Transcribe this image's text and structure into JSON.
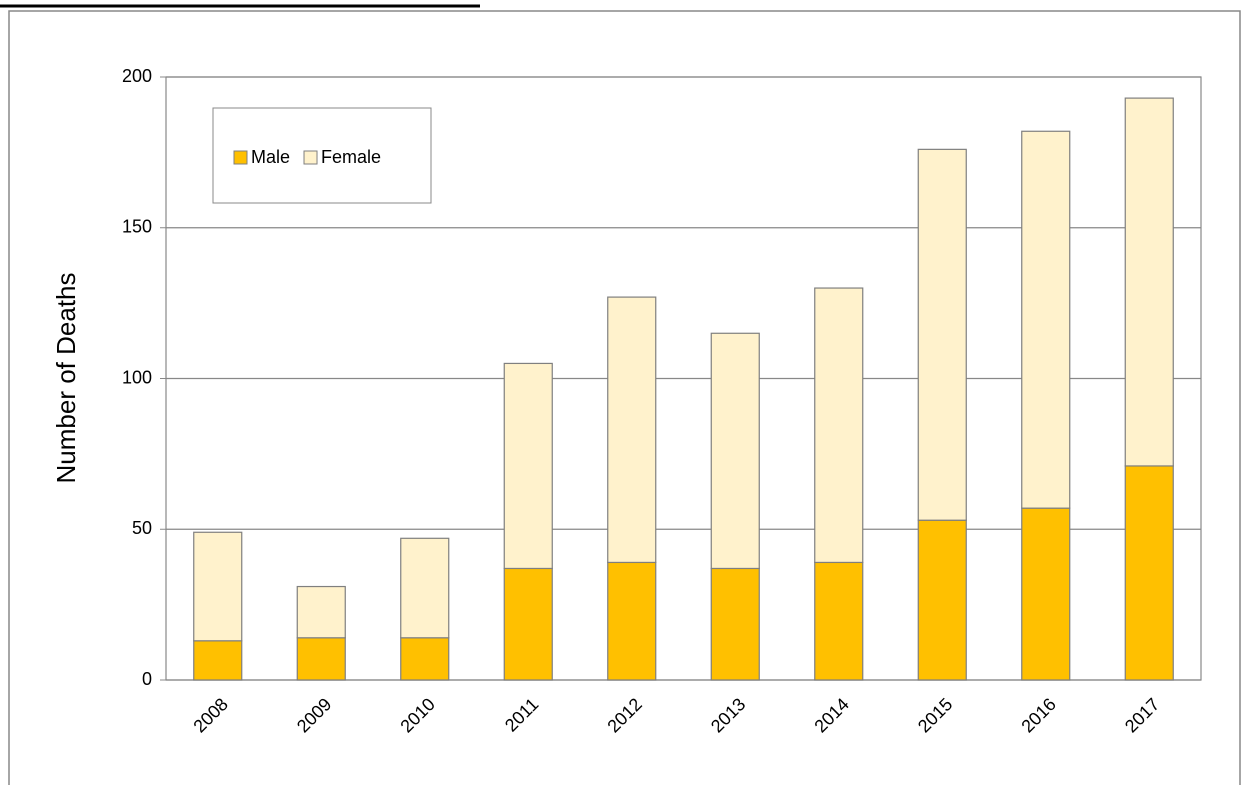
{
  "chart_data": {
    "type": "stacked-bar",
    "y_label": "Number of Deaths",
    "categories": [
      "2008",
      "2009",
      "2010",
      "2011",
      "2012",
      "2013",
      "2014",
      "2015",
      "2016",
      "2017"
    ],
    "series": [
      {
        "name": "Male",
        "color": "#ffc000",
        "values": [
          13,
          14,
          14,
          37,
          39,
          37,
          39,
          53,
          57,
          71
        ]
      },
      {
        "name": "Female",
        "color": "#fff2cc",
        "values": [
          36,
          17,
          33,
          68,
          88,
          78,
          91,
          123,
          125,
          122
        ]
      }
    ],
    "ylim": [
      0,
      200
    ],
    "yticks": [
      0,
      50,
      100,
      150,
      200
    ],
    "grid": true,
    "legend": "top-left"
  }
}
